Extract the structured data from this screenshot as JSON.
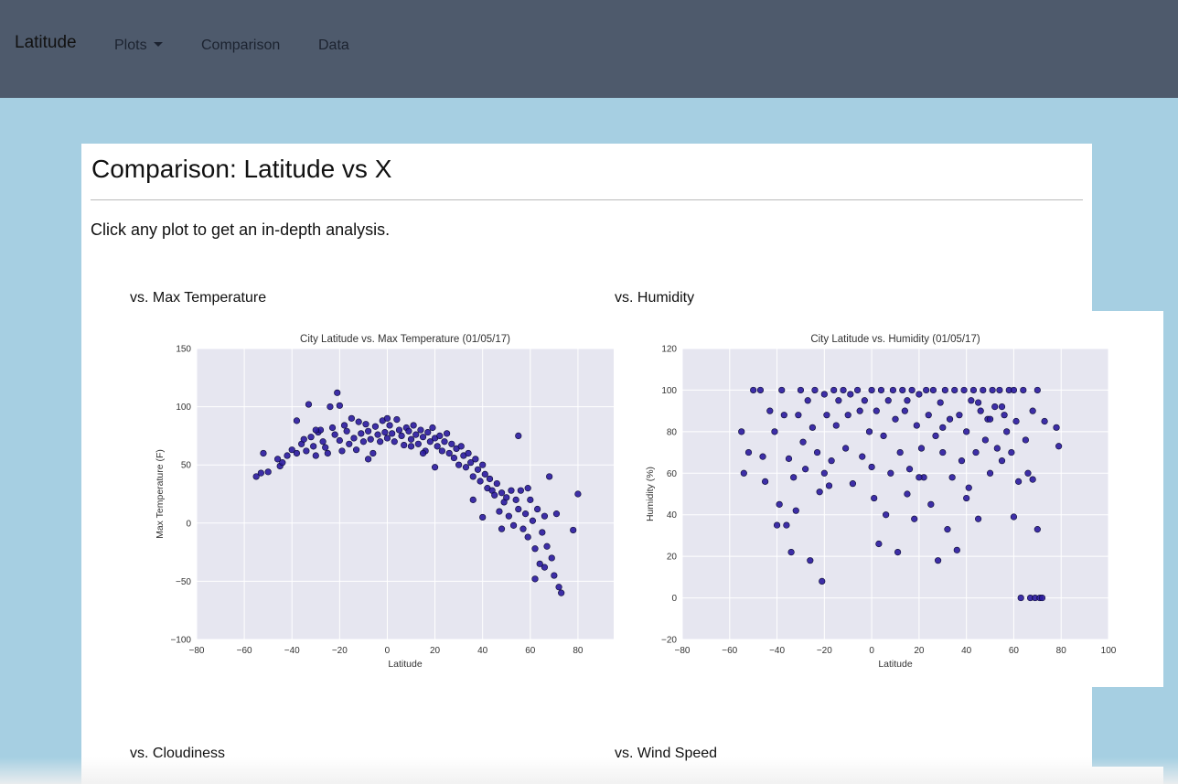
{
  "navbar": {
    "brand": "Latitude",
    "items": [
      {
        "label": "Plots",
        "dropdown": true
      },
      {
        "label": "Comparison"
      },
      {
        "label": "Data"
      }
    ]
  },
  "page": {
    "title": "Comparison: Latitude vs X",
    "intro": "Click any plot to get an in-depth analysis."
  },
  "plots": [
    {
      "heading": "vs. Max Temperature"
    },
    {
      "heading": "vs. Humidity"
    },
    {
      "heading": "vs. Cloudiness"
    },
    {
      "heading": "vs. Wind Speed"
    }
  ],
  "colors": {
    "navbar": "#4e5a6c",
    "background": "#a6cfe2",
    "plot_bg": "#e6e6f0",
    "point": "#2a1a9e"
  },
  "chart_data": [
    {
      "type": "scatter",
      "title": "City Latitude vs. Max Temperature (01/05/17)",
      "xlabel": "Latitude",
      "ylabel": "Max Temperature (F)",
      "xlim": [
        -80,
        95
      ],
      "ylim": [
        -100,
        150
      ],
      "xticks": [
        -80,
        -60,
        -40,
        -20,
        0,
        20,
        40,
        60,
        80
      ],
      "yticks": [
        -100,
        -50,
        0,
        50,
        100,
        150
      ],
      "xtick_labels": [
        "−80",
        "−60",
        "−40",
        "−20",
        "0",
        "20",
        "40",
        "60",
        "80"
      ],
      "ytick_labels": [
        "−100",
        "−50",
        "0",
        "50",
        "100",
        "150"
      ],
      "grid": true,
      "points": [
        [
          -55,
          40
        ],
        [
          -53,
          43
        ],
        [
          -50,
          44
        ],
        [
          -46,
          55
        ],
        [
          -45,
          49
        ],
        [
          -44,
          52
        ],
        [
          -42,
          58
        ],
        [
          -40,
          63
        ],
        [
          -38,
          88
        ],
        [
          -38,
          60
        ],
        [
          -36,
          68
        ],
        [
          -35,
          72
        ],
        [
          -34,
          62
        ],
        [
          -33,
          102
        ],
        [
          -32,
          74
        ],
        [
          -31,
          66
        ],
        [
          -30,
          58
        ],
        [
          -29,
          78
        ],
        [
          -28,
          80
        ],
        [
          -27,
          70
        ],
        [
          -26,
          65
        ],
        [
          -25,
          60
        ],
        [
          -24,
          100
        ],
        [
          -23,
          82
        ],
        [
          -22,
          76
        ],
        [
          -21,
          112
        ],
        [
          -20,
          101
        ],
        [
          -20,
          71
        ],
        [
          -19,
          62
        ],
        [
          -18,
          84
        ],
        [
          -17,
          79
        ],
        [
          -16,
          68
        ],
        [
          -15,
          90
        ],
        [
          -14,
          73
        ],
        [
          -13,
          63
        ],
        [
          -12,
          87
        ],
        [
          -11,
          77
        ],
        [
          -10,
          70
        ],
        [
          -9,
          85
        ],
        [
          -8,
          79
        ],
        [
          -7,
          72
        ],
        [
          -6,
          60
        ],
        [
          -5,
          83
        ],
        [
          -4,
          76
        ],
        [
          -3,
          70
        ],
        [
          -2,
          88
        ],
        [
          -1,
          78
        ],
        [
          0,
          73
        ],
        [
          1,
          84
        ],
        [
          2,
          77
        ],
        [
          3,
          70
        ],
        [
          4,
          89
        ],
        [
          5,
          80
        ],
        [
          6,
          75
        ],
        [
          7,
          67
        ],
        [
          8,
          82
        ],
        [
          9,
          79
        ],
        [
          10,
          72
        ],
        [
          11,
          84
        ],
        [
          12,
          76
        ],
        [
          13,
          68
        ],
        [
          14,
          80
        ],
        [
          15,
          74
        ],
        [
          16,
          62
        ],
        [
          17,
          78
        ],
        [
          18,
          70
        ],
        [
          19,
          82
        ],
        [
          20,
          73
        ],
        [
          21,
          66
        ],
        [
          22,
          75
        ],
        [
          23,
          62
        ],
        [
          24,
          70
        ],
        [
          25,
          77
        ],
        [
          26,
          60
        ],
        [
          27,
          68
        ],
        [
          28,
          56
        ],
        [
          29,
          64
        ],
        [
          30,
          50
        ],
        [
          31,
          66
        ],
        [
          32,
          58
        ],
        [
          33,
          48
        ],
        [
          34,
          60
        ],
        [
          35,
          52
        ],
        [
          36,
          40
        ],
        [
          37,
          55
        ],
        [
          38,
          46
        ],
        [
          39,
          36
        ],
        [
          40,
          50
        ],
        [
          41,
          42
        ],
        [
          42,
          30
        ],
        [
          43,
          38
        ],
        [
          44,
          28
        ],
        [
          45,
          24
        ],
        [
          46,
          34
        ],
        [
          47,
          10
        ],
        [
          48,
          26
        ],
        [
          49,
          18
        ],
        [
          50,
          22
        ],
        [
          51,
          6
        ],
        [
          52,
          28
        ],
        [
          53,
          -2
        ],
        [
          54,
          20
        ],
        [
          55,
          12
        ],
        [
          56,
          28
        ],
        [
          57,
          -5
        ],
        [
          58,
          8
        ],
        [
          59,
          -12
        ],
        [
          60,
          20
        ],
        [
          61,
          2
        ],
        [
          62,
          -22
        ],
        [
          63,
          12
        ],
        [
          64,
          -35
        ],
        [
          65,
          -8
        ],
        [
          66,
          6
        ],
        [
          67,
          -20
        ],
        [
          68,
          40
        ],
        [
          69,
          -30
        ],
        [
          70,
          -45
        ],
        [
          71,
          8
        ],
        [
          72,
          -55
        ],
        [
          73,
          -60
        ],
        [
          78,
          -6
        ],
        [
          80,
          25
        ],
        [
          -52,
          60
        ],
        [
          -8,
          55
        ],
        [
          15,
          60
        ],
        [
          40,
          5
        ],
        [
          55,
          75
        ],
        [
          62,
          -48
        ],
        [
          20,
          48
        ],
        [
          -30,
          80
        ],
        [
          0,
          90
        ],
        [
          10,
          66
        ],
        [
          36,
          20
        ],
        [
          48,
          -5
        ],
        [
          59,
          30
        ],
        [
          66,
          -38
        ]
      ]
    },
    {
      "type": "scatter",
      "title": "City Latitude vs. Humidity (01/05/17)",
      "xlabel": "Latitude",
      "ylabel": "Humidity (%)",
      "xlim": [
        -80,
        100
      ],
      "ylim": [
        -20,
        120
      ],
      "xticks": [
        -80,
        -60,
        -40,
        -20,
        0,
        20,
        40,
        60,
        80,
        100
      ],
      "yticks": [
        -20,
        0,
        20,
        40,
        60,
        80,
        100,
        120
      ],
      "xtick_labels": [
        "−80",
        "−60",
        "−40",
        "−20",
        "0",
        "20",
        "40",
        "60",
        "80",
        "100"
      ],
      "ytick_labels": [
        "−20",
        "0",
        "20",
        "40",
        "60",
        "80",
        "100",
        "120"
      ],
      "grid": true,
      "points": [
        [
          -55,
          80
        ],
        [
          -54,
          60
        ],
        [
          -52,
          70
        ],
        [
          -47,
          100
        ],
        [
          -46,
          68
        ],
        [
          -45,
          56
        ],
        [
          -43,
          90
        ],
        [
          -40,
          35
        ],
        [
          -39,
          45
        ],
        [
          -38,
          100
        ],
        [
          -37,
          88
        ],
        [
          -36,
          35
        ],
        [
          -35,
          67
        ],
        [
          -34,
          22
        ],
        [
          -33,
          58
        ],
        [
          -32,
          42
        ],
        [
          -31,
          88
        ],
        [
          -30,
          100
        ],
        [
          -29,
          75
        ],
        [
          -28,
          62
        ],
        [
          -27,
          95
        ],
        [
          -26,
          18
        ],
        [
          -25,
          82
        ],
        [
          -24,
          100
        ],
        [
          -23,
          70
        ],
        [
          -22,
          51
        ],
        [
          -21,
          8
        ],
        [
          -20,
          98
        ],
        [
          -19,
          88
        ],
        [
          -18,
          54
        ],
        [
          -17,
          66
        ],
        [
          -16,
          100
        ],
        [
          -15,
          83
        ],
        [
          -14,
          95
        ],
        [
          -12,
          100
        ],
        [
          -11,
          72
        ],
        [
          -10,
          88
        ],
        [
          -9,
          98
        ],
        [
          -8,
          55
        ],
        [
          -6,
          100
        ],
        [
          -5,
          90
        ],
        [
          -4,
          68
        ],
        [
          -3,
          95
        ],
        [
          -1,
          80
        ],
        [
          0,
          100
        ],
        [
          1,
          48
        ],
        [
          2,
          90
        ],
        [
          3,
          26
        ],
        [
          4,
          100
        ],
        [
          5,
          78
        ],
        [
          6,
          40
        ],
        [
          7,
          95
        ],
        [
          8,
          60
        ],
        [
          9,
          100
        ],
        [
          10,
          86
        ],
        [
          11,
          22
        ],
        [
          12,
          70
        ],
        [
          13,
          100
        ],
        [
          14,
          90
        ],
        [
          15,
          50
        ],
        [
          16,
          62
        ],
        [
          17,
          100
        ],
        [
          18,
          38
        ],
        [
          19,
          83
        ],
        [
          20,
          98
        ],
        [
          21,
          72
        ],
        [
          22,
          58
        ],
        [
          23,
          100
        ],
        [
          24,
          88
        ],
        [
          25,
          45
        ],
        [
          26,
          100
        ],
        [
          27,
          78
        ],
        [
          28,
          18
        ],
        [
          29,
          94
        ],
        [
          30,
          70
        ],
        [
          31,
          100
        ],
        [
          32,
          33
        ],
        [
          33,
          86
        ],
        [
          34,
          58
        ],
        [
          35,
          100
        ],
        [
          36,
          23
        ],
        [
          37,
          88
        ],
        [
          38,
          66
        ],
        [
          39,
          100
        ],
        [
          40,
          80
        ],
        [
          41,
          53
        ],
        [
          42,
          95
        ],
        [
          43,
          100
        ],
        [
          44,
          70
        ],
        [
          45,
          38
        ],
        [
          46,
          90
        ],
        [
          47,
          100
        ],
        [
          48,
          76
        ],
        [
          49,
          86
        ],
        [
          50,
          60
        ],
        [
          51,
          100
        ],
        [
          52,
          92
        ],
        [
          53,
          72
        ],
        [
          54,
          100
        ],
        [
          55,
          66
        ],
        [
          56,
          88
        ],
        [
          57,
          80
        ],
        [
          58,
          100
        ],
        [
          59,
          70
        ],
        [
          60,
          39
        ],
        [
          61,
          85
        ],
        [
          62,
          56
        ],
        [
          63,
          0
        ],
        [
          64,
          100
        ],
        [
          65,
          76
        ],
        [
          66,
          60
        ],
        [
          67,
          0
        ],
        [
          68,
          90
        ],
        [
          69,
          0
        ],
        [
          70,
          100
        ],
        [
          71,
          0
        ],
        [
          72,
          0
        ],
        [
          73,
          85
        ],
        [
          78,
          82
        ],
        [
          79,
          73
        ],
        [
          -50,
          100
        ],
        [
          -41,
          80
        ],
        [
          15,
          95
        ],
        [
          30,
          82
        ],
        [
          45,
          94
        ],
        [
          55,
          92
        ],
        [
          60,
          100
        ],
        [
          68,
          57
        ],
        [
          70,
          33
        ],
        [
          -20,
          60
        ],
        [
          0,
          63
        ],
        [
          20,
          58
        ],
        [
          40,
          48
        ],
        [
          50,
          86
        ]
      ]
    }
  ]
}
